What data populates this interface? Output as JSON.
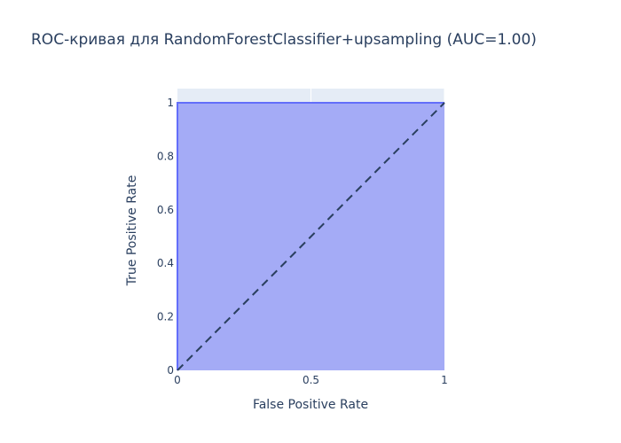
{
  "chart_data": {
    "type": "area",
    "title": "ROC-кривая для RandomForestClassifier+upsampling (AUC=1.00)",
    "xlabel": "False Positive Rate",
    "ylabel": "True Positive Rate",
    "xlim": [
      0,
      1
    ],
    "ylim": [
      0,
      1
    ],
    "grid": true,
    "x_ticks": [
      {
        "value": 0,
        "label": "0"
      },
      {
        "value": 0.5,
        "label": "0.5"
      },
      {
        "value": 1,
        "label": "1"
      }
    ],
    "y_ticks": [
      {
        "value": 0,
        "label": "0"
      },
      {
        "value": 0.2,
        "label": "0.2"
      },
      {
        "value": 0.4,
        "label": "0.4"
      },
      {
        "value": 0.6,
        "label": "0.6"
      },
      {
        "value": 0.8,
        "label": "0.8"
      },
      {
        "value": 1,
        "label": "1"
      }
    ],
    "series": [
      {
        "x": [
          0,
          0,
          1
        ],
        "y": [
          0,
          1,
          1
        ],
        "fill": "tozeroy",
        "color": "#636efa"
      }
    ],
    "reference_line": {
      "x": [
        0,
        1
      ],
      "y": [
        0,
        1
      ],
      "style": "dash",
      "color": "#2a3f5f"
    },
    "colors": {
      "plot_bg": "#e5ecf6",
      "fill": "#a4abf6",
      "line": "#636efa",
      "grid": "#ffffff",
      "text": "#2a3f5f"
    }
  }
}
